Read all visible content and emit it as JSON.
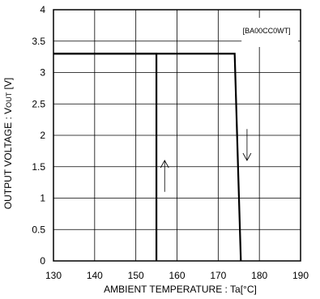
{
  "chart_data": {
    "type": "line",
    "title": "",
    "xlabel_main": "AMBIENT TEMPERATURE",
    "xlabel_sep": " : ",
    "xlabel_symbol": "Ta",
    "xlabel_unit": "[°C]",
    "ylabel_main": "OUTPUT VOLTAGE",
    "ylabel_sep": " : ",
    "ylabel_symbol": "V",
    "ylabel_subscript": "OUT",
    "ylabel_unit": " [V]",
    "xlim": [
      130,
      190
    ],
    "ylim": [
      0,
      4
    ],
    "xticks": [
      130,
      140,
      150,
      160,
      170,
      180,
      190
    ],
    "yticks": [
      0,
      0.5,
      1,
      1.5,
      2,
      2.5,
      3,
      3.5,
      4
    ],
    "xtick_labels": [
      "130",
      "140",
      "150",
      "160",
      "170",
      "180",
      "190"
    ],
    "ytick_labels": [
      "0",
      "0.5",
      "1",
      "1.5",
      "2",
      "2.5",
      "3",
      "3.5",
      "4"
    ],
    "grid": true,
    "legend_label": "[BA00CC0WT]",
    "series": [
      {
        "direction": "rising",
        "x": [
          130,
          155,
          155
        ],
        "y": [
          3.3,
          3.3,
          0
        ]
      },
      {
        "direction": "falling",
        "x": [
          130,
          174,
          175.5
        ],
        "y": [
          3.3,
          3.3,
          0
        ]
      }
    ],
    "annotations": [
      {
        "type": "arrow-up",
        "x": 157,
        "y_from": 1.1,
        "y_to": 1.6
      },
      {
        "type": "arrow-down",
        "x": 177,
        "y_from": 2.1,
        "y_to": 1.6
      }
    ]
  }
}
